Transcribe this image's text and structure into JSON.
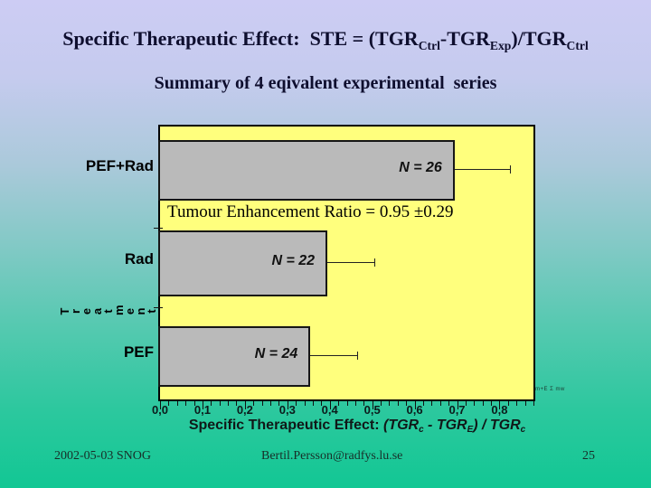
{
  "slide": {
    "title_parts": [
      {
        "t": "Specific Therapeutic Effect:  STE = (TGR"
      },
      {
        "t": "Ctrl",
        "sub": true
      },
      {
        "t": "-TGR"
      },
      {
        "t": "Exp",
        "sub": true
      },
      {
        "t": ")/TGR"
      },
      {
        "t": "Ctrl",
        "sub": true
      }
    ],
    "title_plain": "Specific Therapeutic Effect:  STE = (TGRCtrl-TGRExp)/TGRCtrl",
    "subtitle": "Summary of 4 eqivalent experimental  series",
    "footer": {
      "date": "2002-05-03 SNOG",
      "email": "Bertil.Persson@radfys.lu.se",
      "page_number": "25"
    }
  },
  "chart_data": {
    "type": "bar",
    "orientation": "horizontal",
    "categories": [
      "PEF+Rad",
      "Rad",
      "PEF"
    ],
    "values": [
      0.69,
      0.39,
      0.35
    ],
    "errors_upper": [
      0.13,
      0.11,
      0.11
    ],
    "bar_labels": [
      "N = 26",
      "N = 22",
      "N = 24"
    ],
    "annotation": "Tumour Enhancement Ratio = 0.95 ±0.29",
    "xlabel_plain": "Specific Therapeutic Effect: (TGRc - TGRE) / TGRc",
    "xlabel_parts": [
      {
        "t": "Specific Therapeutic Effect: "
      },
      {
        "t": "(TGR",
        "i": true
      },
      {
        "t": "c",
        "i": true,
        "sub": true
      },
      {
        "t": " - TGR",
        "i": true
      },
      {
        "t": "E",
        "i": true,
        "sub": true
      },
      {
        "t": ") / TGR",
        "i": true
      },
      {
        "t": "c",
        "i": true,
        "sub": true
      }
    ],
    "ylabel": "Treatment",
    "xlim": [
      0,
      0.88
    ],
    "xtick_labels": [
      "0,0",
      "0,1",
      "0,2",
      "0,3",
      "0,4",
      "0,5",
      "0,6",
      "0,7",
      "0,8"
    ],
    "xtick_values": [
      0,
      0.1,
      0.2,
      0.3,
      0.4,
      0.5,
      0.6,
      0.7,
      0.8
    ],
    "minor_tick_step": 0.02,
    "grid": false,
    "legend": false,
    "micro_annotation": "m+E Σ mw",
    "colors": {
      "plot_bg": "#ffff7d",
      "bar_fill": "#bababa",
      "bar_border": "#161616",
      "bg_top": "#cdccf4",
      "bg_bottom": "#12c794",
      "text": "#0e0e2e"
    }
  }
}
